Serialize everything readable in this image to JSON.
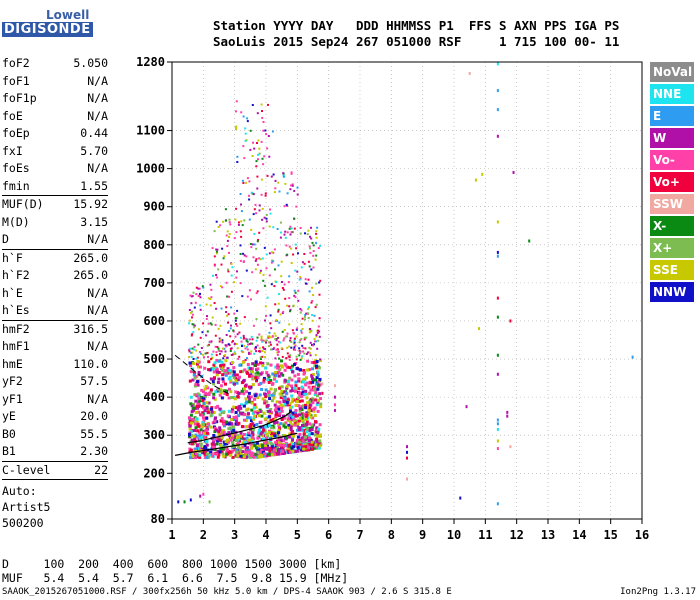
{
  "logo": {
    "line1": "Lowell",
    "line2": "DIGISONDE"
  },
  "header": {
    "line1": "Station YYYY DAY   DDD HHMMSS P1  FFS S AXN PPS IGA PS",
    "line2": "SaoLuis 2015 Sep24 267 051000 RSF     1 715 100 00- 11"
  },
  "params": [
    [
      {
        "label": "foF2",
        "value": "5.050"
      },
      {
        "label": "foF1",
        "value": "N/A"
      },
      {
        "label": "foF1p",
        "value": "N/A"
      },
      {
        "label": "foE",
        "value": "N/A"
      },
      {
        "label": "foEp",
        "value": "0.44"
      },
      {
        "label": "fxI",
        "value": "5.70"
      },
      {
        "label": "foEs",
        "value": "N/A"
      },
      {
        "label": "fmin",
        "value": "1.55"
      }
    ],
    [
      {
        "label": "MUF(D)",
        "value": "15.92"
      },
      {
        "label": "M(D)",
        "value": "3.15"
      },
      {
        "label": "D",
        "value": "N/A"
      }
    ],
    [
      {
        "label": "h`F",
        "value": "265.0"
      },
      {
        "label": "h`F2",
        "value": "265.0"
      },
      {
        "label": "h`E",
        "value": "N/A"
      },
      {
        "label": "h`Es",
        "value": "N/A"
      }
    ],
    [
      {
        "label": "hmF2",
        "value": "316.5"
      },
      {
        "label": "hmF1",
        "value": "N/A"
      },
      {
        "label": "hmE",
        "value": "110.0"
      },
      {
        "label": "yF2",
        "value": "57.5"
      },
      {
        "label": "yF1",
        "value": "N/A"
      },
      {
        "label": "yE",
        "value": "20.0"
      },
      {
        "label": "B0",
        "value": "55.5"
      },
      {
        "label": "B1",
        "value": "2.30"
      }
    ],
    [
      {
        "label": "C-level",
        "value": "22"
      }
    ]
  ],
  "auto_text": "Auto:\nArtist5\n500200",
  "legend": [
    {
      "name": "NoVal",
      "color": "#8c8c8c"
    },
    {
      "name": "NNE",
      "color": "#1ee4f0"
    },
    {
      "name": "E",
      "color": "#2e9cf0"
    },
    {
      "name": "W",
      "color": "#b010a8"
    },
    {
      "name": "Vo-",
      "color": "#ff40a8"
    },
    {
      "name": "Vo+",
      "color": "#f0003c"
    },
    {
      "name": "SSW",
      "color": "#f0a8a0"
    },
    {
      "name": "X-",
      "color": "#0a8a12"
    },
    {
      "name": "X+",
      "color": "#7cbc50"
    },
    {
      "name": "SSE",
      "color": "#c8c800"
    },
    {
      "name": "NNW",
      "color": "#1010c8"
    }
  ],
  "footer": {
    "line1": "D     100  200  400  600  800 1000 1500 3000 [km]",
    "line2": "MUF   5.4  5.4  5.7  6.1  6.6  7.5  9.8 15.9 [MHz]",
    "bottom": "SAAOK_2015267051000.RSF / 300fx256h 50 kHz 5.0 km / DPS-4 SAAOK 903 / 2.6 S 315.8 E",
    "version": "Ion2Png 1.3.17"
  },
  "chart_data": {
    "type": "scatter",
    "title": "",
    "xlabel": "",
    "ylabel": "",
    "xlim": [
      1,
      16
    ],
    "ylim": [
      80,
      1280
    ],
    "x_ticks": [
      "1",
      "2",
      "3",
      "4",
      "5",
      "6",
      "7",
      "8",
      "9",
      "10",
      "11",
      "12",
      "13",
      "14",
      "15",
      "16"
    ],
    "y_ticks": [
      "80",
      "200",
      "300",
      "400",
      "500",
      "600",
      "700",
      "800",
      "900",
      "1000",
      "1100",
      "1280"
    ],
    "trace_frequency_curve": [
      [
        1.1,
        247
      ],
      [
        1.6,
        255
      ],
      [
        2.2,
        262
      ],
      [
        2.8,
        270
      ],
      [
        3.4,
        278
      ],
      [
        3.9,
        286
      ],
      [
        4.3,
        292
      ],
      [
        4.6,
        297
      ],
      [
        4.8,
        302
      ],
      [
        5.0,
        305
      ]
    ],
    "oblique_curve": [
      [
        1.5,
        280
      ],
      [
        1.9,
        285
      ],
      [
        2.3,
        293
      ],
      [
        2.7,
        300
      ],
      [
        3.1,
        308
      ],
      [
        3.5,
        316
      ],
      [
        3.9,
        325
      ],
      [
        4.3,
        338
      ],
      [
        4.6,
        350
      ],
      [
        4.8,
        362
      ]
    ],
    "virtual_height_dashed": [
      [
        1.1,
        510
      ],
      [
        1.4,
        490
      ],
      [
        1.7,
        470
      ],
      [
        2.0,
        450
      ],
      [
        2.3,
        432
      ],
      [
        2.6,
        418
      ],
      [
        2.9,
        405
      ]
    ],
    "echo_region": {
      "f_min": 1.5,
      "f_max": 5.7,
      "h_min": 245,
      "h_max": 1230
    },
    "isolated_points": [
      {
        "f": 8.5,
        "h": 270,
        "c": "W"
      },
      {
        "f": 8.5,
        "h": 255,
        "c": "NNW"
      },
      {
        "f": 8.5,
        "h": 240,
        "c": "Vo+"
      },
      {
        "f": 8.5,
        "h": 185,
        "c": "SSW"
      },
      {
        "f": 10.2,
        "h": 135,
        "c": "NNW"
      },
      {
        "f": 10.5,
        "h": 1250,
        "c": "SSW"
      },
      {
        "f": 10.7,
        "h": 970,
        "c": "SSE"
      },
      {
        "f": 10.9,
        "h": 985,
        "c": "SSE"
      },
      {
        "f": 10.4,
        "h": 375,
        "c": "W"
      },
      {
        "f": 10.8,
        "h": 580,
        "c": "SSE"
      },
      {
        "f": 11.4,
        "h": 1275,
        "c": "NNE"
      },
      {
        "f": 11.4,
        "h": 1205,
        "c": "E"
      },
      {
        "f": 11.4,
        "h": 1155,
        "c": "E"
      },
      {
        "f": 11.4,
        "h": 1085,
        "c": "W"
      },
      {
        "f": 11.4,
        "h": 860,
        "c": "SSE"
      },
      {
        "f": 11.4,
        "h": 780,
        "c": "NNW"
      },
      {
        "f": 11.4,
        "h": 770,
        "c": "E"
      },
      {
        "f": 11.4,
        "h": 660,
        "c": "Vo+"
      },
      {
        "f": 11.4,
        "h": 610,
        "c": "X-"
      },
      {
        "f": 11.4,
        "h": 510,
        "c": "X-"
      },
      {
        "f": 11.4,
        "h": 460,
        "c": "W"
      },
      {
        "f": 11.4,
        "h": 340,
        "c": "E"
      },
      {
        "f": 11.4,
        "h": 330,
        "c": "E"
      },
      {
        "f": 11.4,
        "h": 315,
        "c": "NNE"
      },
      {
        "f": 11.4,
        "h": 285,
        "c": "SSE"
      },
      {
        "f": 11.4,
        "h": 265,
        "c": "Vo-"
      },
      {
        "f": 11.4,
        "h": 120,
        "c": "E"
      },
      {
        "f": 11.7,
        "h": 360,
        "c": "W"
      },
      {
        "f": 11.7,
        "h": 350,
        "c": "W"
      },
      {
        "f": 11.8,
        "h": 600,
        "c": "Vo+"
      },
      {
        "f": 11.8,
        "h": 270,
        "c": "SSW"
      },
      {
        "f": 11.9,
        "h": 990,
        "c": "W"
      },
      {
        "f": 12.4,
        "h": 810,
        "c": "X-"
      },
      {
        "f": 15.7,
        "h": 505,
        "c": "E"
      },
      {
        "f": 5.8,
        "h": 435,
        "c": "SSW"
      },
      {
        "f": 5.8,
        "h": 410,
        "c": "Vo+"
      },
      {
        "f": 6.2,
        "h": 430,
        "c": "SSW"
      },
      {
        "f": 6.2,
        "h": 400,
        "c": "W"
      },
      {
        "f": 6.2,
        "h": 380,
        "c": "Vo-"
      },
      {
        "f": 6.2,
        "h": 365,
        "c": "W"
      },
      {
        "f": 1.2,
        "h": 125,
        "c": "NNW"
      },
      {
        "f": 1.4,
        "h": 125,
        "c": "X-"
      },
      {
        "f": 1.6,
        "h": 130,
        "c": "NNW"
      },
      {
        "f": 1.9,
        "h": 140,
        "c": "W"
      },
      {
        "f": 2.0,
        "h": 145,
        "c": "Vo-"
      },
      {
        "f": 2.2,
        "h": 125,
        "c": "X+"
      }
    ]
  }
}
